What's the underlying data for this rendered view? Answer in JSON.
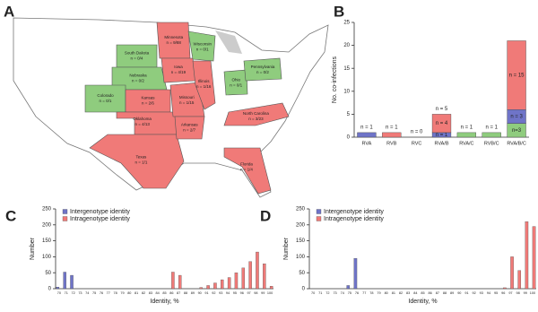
{
  "map": {
    "panel": "A",
    "states": [
      {
        "name": "South Dakota",
        "label": "n = 0/4",
        "color": "#8fcc7e"
      },
      {
        "name": "Nebraska",
        "label": "n = 0/2",
        "color": "#8fcc7e"
      },
      {
        "name": "Colorado",
        "label": "n = 0/1",
        "color": "#8fcc7e"
      },
      {
        "name": "Kansas",
        "label": "n = 2/6",
        "color": "#f07a78"
      },
      {
        "name": "Oklahoma",
        "label": "n = 4/13",
        "color": "#f07a78"
      },
      {
        "name": "Texas",
        "label": "n = 1/1",
        "color": "#f07a78"
      },
      {
        "name": "Minnesota",
        "label": "n = 9/88",
        "color": "#f07a78"
      },
      {
        "name": "Iowa",
        "label": "n = 4/19",
        "color": "#f07a78"
      },
      {
        "name": "Missouri",
        "label": "n = 1/15",
        "color": "#f07a78"
      },
      {
        "name": "Arkansas",
        "label": "n = 2/7",
        "color": "#f07a78"
      },
      {
        "name": "Illinois",
        "label": "n = 1/16",
        "color": "#f07a78"
      },
      {
        "name": "Wisconsin",
        "label": "n = 0/1",
        "color": "#8fcc7e"
      },
      {
        "name": "Ohio",
        "label": "n = 0/1",
        "color": "#8fcc7e"
      },
      {
        "name": "Pennsylvania",
        "label": "n = 0/2",
        "color": "#8fcc7e"
      },
      {
        "name": "North Carolina",
        "label": "n = 3/23",
        "color": "#f07a78"
      },
      {
        "name": "Florida",
        "label": "n = 1/4",
        "color": "#f07a78"
      }
    ]
  },
  "chart_data": [
    {
      "type": "stacked_bar",
      "panel": "B",
      "y_label": "No. co-infections",
      "categories": [
        "RVA",
        "RVB",
        "RVC",
        "RVA/B",
        "RVA/C",
        "RVB/C",
        "RVA/B/C"
      ],
      "total_labels": [
        "n = 1",
        "n = 1",
        "n = 0",
        "n = 5",
        "n = 1",
        "n = 1",
        null
      ],
      "series": [
        {
          "color": "#8fcc7e",
          "values": [
            0,
            0,
            0,
            0,
            1,
            1,
            3
          ],
          "value_labels": [
            null,
            null,
            null,
            null,
            null,
            null,
            "n=3"
          ]
        },
        {
          "color": "#6f74c8",
          "values": [
            1,
            0,
            0,
            1,
            0,
            0,
            3
          ],
          "value_labels": [
            null,
            null,
            null,
            "n = 1",
            null,
            null,
            "n = 3"
          ]
        },
        {
          "color": "#f07a78",
          "values": [
            0,
            1,
            0,
            4,
            0,
            0,
            15
          ],
          "value_labels": [
            null,
            null,
            null,
            "n = 4",
            null,
            null,
            "n = 15"
          ]
        }
      ],
      "ylim": [
        0,
        25
      ],
      "yticks": [
        0,
        5,
        10,
        15,
        20,
        25
      ]
    },
    {
      "type": "bar",
      "panel": "C",
      "x_label": "Identity, %",
      "y_label": "Number",
      "x": [
        70,
        71,
        72,
        73,
        74,
        75,
        76,
        77,
        78,
        79,
        80,
        81,
        82,
        83,
        84,
        85,
        86,
        87,
        88,
        89,
        90,
        91,
        92,
        93,
        94,
        95,
        96,
        97,
        98,
        99,
        100
      ],
      "series": [
        {
          "name": "Intergenotype identity",
          "color": "#6f74c8",
          "values": [
            5,
            52,
            42,
            0,
            0,
            0,
            0,
            0,
            0,
            0,
            0,
            0,
            0,
            0,
            0,
            0,
            0,
            0,
            0,
            0,
            0,
            0,
            0,
            0,
            0,
            0,
            0,
            0,
            0,
            0,
            0
          ]
        },
        {
          "name": "Intragenotype identity",
          "color": "#f07a78",
          "values": [
            0,
            0,
            0,
            0,
            0,
            0,
            0,
            0,
            0,
            0,
            0,
            0,
            0,
            0,
            0,
            0,
            52,
            42,
            0,
            0,
            4,
            10,
            18,
            28,
            35,
            50,
            65,
            85,
            115,
            78,
            8
          ]
        }
      ],
      "ylim": [
        0,
        250
      ],
      "yticks": [
        0,
        50,
        100,
        150,
        200,
        250
      ]
    },
    {
      "type": "bar",
      "panel": "D",
      "x_label": "Identity, %",
      "y_label": "Number",
      "x": [
        70,
        71,
        72,
        73,
        74,
        75,
        76,
        77,
        78,
        79,
        80,
        81,
        82,
        83,
        84,
        85,
        86,
        87,
        88,
        89,
        90,
        91,
        92,
        93,
        94,
        95,
        96,
        97,
        98,
        99,
        100
      ],
      "series": [
        {
          "name": "Intergenotype identity",
          "color": "#6f74c8",
          "values": [
            0,
            0,
            0,
            0,
            0,
            10,
            95,
            0,
            0,
            0,
            0,
            0,
            0,
            0,
            0,
            0,
            0,
            0,
            0,
            0,
            0,
            0,
            0,
            0,
            0,
            0,
            0,
            0,
            0,
            0,
            0
          ]
        },
        {
          "name": "Intragenotype identity",
          "color": "#f07a78",
          "values": [
            0,
            0,
            0,
            0,
            0,
            0,
            0,
            0,
            0,
            0,
            0,
            0,
            0,
            0,
            0,
            0,
            0,
            0,
            0,
            0,
            0,
            0,
            0,
            0,
            0,
            0,
            3,
            100,
            57,
            210,
            195
          ]
        }
      ],
      "ylim": [
        0,
        250
      ],
      "yticks": [
        0,
        50,
        100,
        150,
        200,
        250
      ]
    }
  ]
}
